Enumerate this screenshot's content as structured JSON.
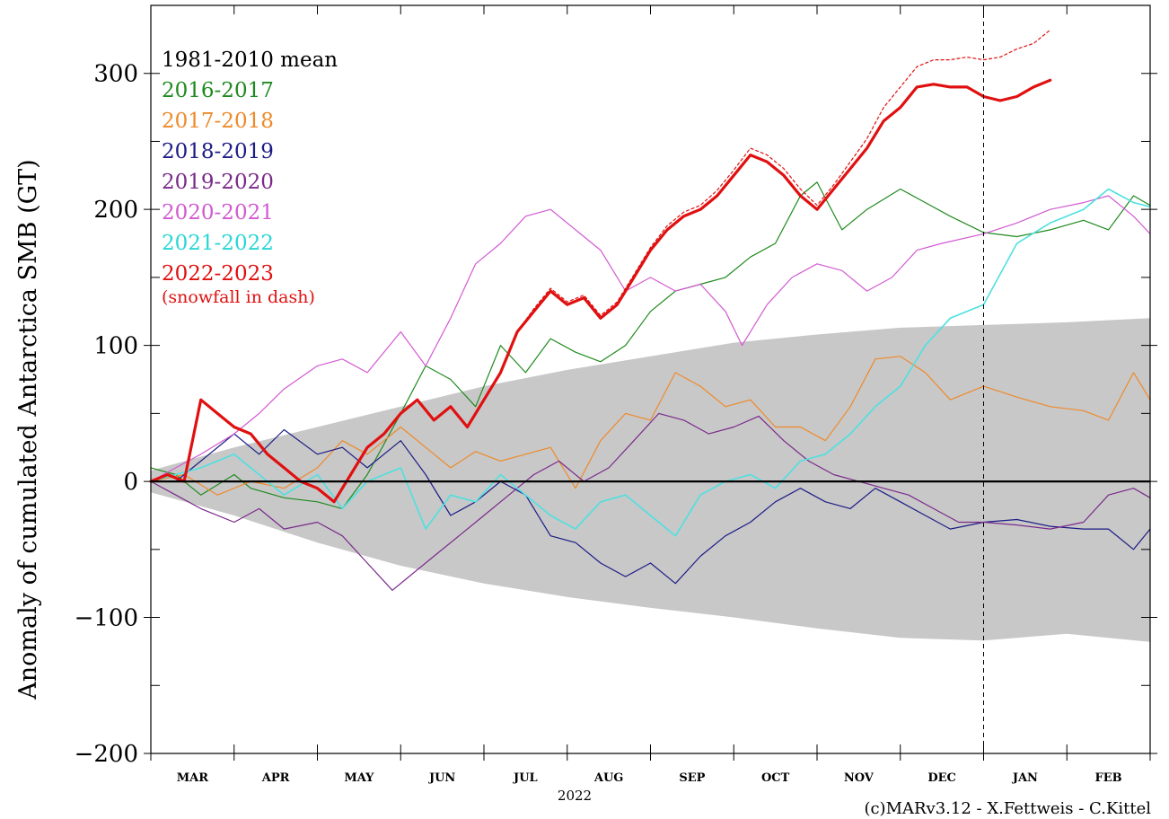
{
  "chart_data": {
    "type": "line",
    "title": "",
    "xlabel": "2022",
    "ylabel": "Anomaly of cumulated Antarctica SMB (GT)",
    "credit": "(c)MARv3.12 - X.Fettweis - C.Kittel",
    "ylim": [
      -200,
      350
    ],
    "yticks": [
      -200,
      -100,
      0,
      100,
      200,
      300
    ],
    "yticks_minor": [
      -150,
      -50,
      50,
      150,
      250
    ],
    "months": [
      "MAR",
      "APR",
      "MAY",
      "JUN",
      "JUL",
      "AUG",
      "SEP",
      "OCT",
      "NOV",
      "DEC",
      "JAN",
      "FEB"
    ],
    "x_unit": "months since 1 Mar 2022",
    "xlim": [
      0,
      12
    ],
    "current_date_marker": 10.0,
    "legend_position": "top-left",
    "grid": false,
    "zero_line": true,
    "band": {
      "name": "1981-2010 mean",
      "x": [
        0,
        1,
        2,
        3,
        4,
        5,
        6,
        7,
        8,
        9,
        10,
        11,
        12
      ],
      "upper": [
        8,
        25,
        40,
        55,
        70,
        82,
        92,
        102,
        108,
        113,
        115,
        117,
        120
      ],
      "lower": [
        -8,
        -25,
        -45,
        -62,
        -75,
        -85,
        -93,
        -100,
        -108,
        -115,
        -117,
        -112,
        -118
      ],
      "color": "#c8c8c8"
    },
    "legend_title": "1981-2010 mean",
    "legend_note": "(snowfall in dash)",
    "series": [
      {
        "name": "2016-2017",
        "color": "#1f8a1f",
        "width": 1.2,
        "x": [
          0,
          0.3,
          0.6,
          1.0,
          1.2,
          1.6,
          2.0,
          2.3,
          2.6,
          3.0,
          3.3,
          3.6,
          3.9,
          4.2,
          4.5,
          4.8,
          5.1,
          5.4,
          5.7,
          6.0,
          6.3,
          6.6,
          6.9,
          7.2,
          7.5,
          7.8,
          8.0,
          8.3,
          8.6,
          9.0,
          9.3,
          9.6,
          10.0,
          10.4,
          10.8,
          11.2,
          11.5,
          11.8,
          12.0
        ],
        "y": [
          10,
          5,
          -10,
          5,
          -5,
          -12,
          -15,
          -20,
          5,
          50,
          85,
          75,
          55,
          100,
          80,
          105,
          95,
          88,
          100,
          125,
          140,
          145,
          150,
          165,
          175,
          210,
          220,
          185,
          200,
          215,
          205,
          195,
          183,
          180,
          185,
          192,
          185,
          210,
          203
        ]
      },
      {
        "name": "2017-2018",
        "color": "#ee8a2a",
        "width": 1.2,
        "x": [
          0,
          0.4,
          0.8,
          1.2,
          1.6,
          2.0,
          2.3,
          2.6,
          3.0,
          3.3,
          3.6,
          3.9,
          4.2,
          4.5,
          4.8,
          5.1,
          5.4,
          5.7,
          6.0,
          6.3,
          6.6,
          6.9,
          7.2,
          7.5,
          7.8,
          8.1,
          8.4,
          8.7,
          9.0,
          9.3,
          9.6,
          10.0,
          10.4,
          10.8,
          11.2,
          11.5,
          11.8,
          12.0
        ],
        "y": [
          0,
          5,
          -10,
          0,
          -5,
          10,
          30,
          20,
          40,
          25,
          10,
          22,
          15,
          20,
          25,
          -5,
          30,
          50,
          45,
          80,
          70,
          55,
          60,
          40,
          40,
          30,
          55,
          90,
          92,
          80,
          60,
          70,
          62,
          55,
          52,
          45,
          80,
          60
        ]
      },
      {
        "name": "2018-2019",
        "color": "#1c1c86",
        "width": 1.2,
        "x": [
          0,
          0.3,
          0.6,
          1.0,
          1.3,
          1.6,
          2.0,
          2.3,
          2.6,
          3.0,
          3.3,
          3.6,
          3.9,
          4.2,
          4.5,
          4.8,
          5.1,
          5.4,
          5.7,
          6.0,
          6.3,
          6.6,
          6.9,
          7.2,
          7.5,
          7.8,
          8.1,
          8.4,
          8.7,
          9.0,
          9.3,
          9.6,
          10.0,
          10.4,
          10.8,
          11.2,
          11.5,
          11.8,
          12.0
        ],
        "y": [
          0,
          0,
          15,
          35,
          20,
          38,
          20,
          25,
          10,
          30,
          5,
          -25,
          -15,
          0,
          -10,
          -40,
          -45,
          -60,
          -70,
          -60,
          -75,
          -55,
          -40,
          -30,
          -15,
          -5,
          -15,
          -20,
          -5,
          -15,
          -25,
          -35,
          -30,
          -28,
          -33,
          -35,
          -35,
          -50,
          -35
        ]
      },
      {
        "name": "2019-2020",
        "color": "#7a2a8a",
        "width": 1.2,
        "x": [
          0,
          0.3,
          0.6,
          1.0,
          1.3,
          1.6,
          2.0,
          2.3,
          2.6,
          2.9,
          3.1,
          3.4,
          3.7,
          4.0,
          4.3,
          4.6,
          4.9,
          5.2,
          5.5,
          5.8,
          6.1,
          6.4,
          6.7,
          7.0,
          7.3,
          7.6,
          7.9,
          8.2,
          8.5,
          8.8,
          9.1,
          9.4,
          9.7,
          10.0,
          10.4,
          10.8,
          11.2,
          11.5,
          11.8,
          12.0
        ],
        "y": [
          0,
          -10,
          -20,
          -30,
          -20,
          -35,
          -30,
          -40,
          -60,
          -80,
          -70,
          -55,
          -40,
          -25,
          -10,
          5,
          15,
          0,
          10,
          30,
          50,
          45,
          35,
          40,
          48,
          30,
          15,
          5,
          0,
          -5,
          -10,
          -20,
          -30,
          -30,
          -32,
          -35,
          -30,
          -10,
          -5,
          -12
        ]
      },
      {
        "name": "2020-2021",
        "color": "#d25ad2",
        "width": 1.2,
        "x": [
          0,
          0.3,
          0.6,
          1.0,
          1.3,
          1.6,
          2.0,
          2.3,
          2.6,
          3.0,
          3.3,
          3.6,
          3.9,
          4.2,
          4.5,
          4.8,
          5.1,
          5.4,
          5.7,
          6.0,
          6.3,
          6.6,
          6.9,
          7.1,
          7.4,
          7.7,
          8.0,
          8.3,
          8.6,
          8.9,
          9.2,
          9.5,
          10.0,
          10.4,
          10.8,
          11.2,
          11.5,
          11.8,
          12.0
        ],
        "y": [
          0,
          10,
          20,
          35,
          50,
          68,
          85,
          90,
          80,
          110,
          85,
          120,
          160,
          175,
          195,
          200,
          185,
          170,
          140,
          150,
          140,
          145,
          125,
          100,
          130,
          150,
          160,
          155,
          140,
          150,
          170,
          175,
          182,
          190,
          200,
          205,
          210,
          195,
          182
        ]
      },
      {
        "name": "2021-2022",
        "color": "#4ee0e0",
        "width": 1.6,
        "x": [
          0,
          0.3,
          0.6,
          1.0,
          1.3,
          1.6,
          2.0,
          2.3,
          2.6,
          3.0,
          3.3,
          3.6,
          3.9,
          4.2,
          4.5,
          4.8,
          5.1,
          5.4,
          5.7,
          6.0,
          6.3,
          6.6,
          6.9,
          7.2,
          7.5,
          7.8,
          8.1,
          8.4,
          8.7,
          9.0,
          9.3,
          9.6,
          10.0,
          10.4,
          10.8,
          11.2,
          11.5,
          11.8,
          12.0
        ],
        "y": [
          0,
          5,
          10,
          20,
          5,
          -10,
          5,
          -20,
          0,
          10,
          -35,
          -10,
          -15,
          5,
          -10,
          -25,
          -35,
          -15,
          -10,
          -25,
          -40,
          -10,
          0,
          5,
          -5,
          15,
          20,
          35,
          55,
          70,
          100,
          120,
          130,
          175,
          190,
          200,
          215,
          205,
          202
        ]
      },
      {
        "name": "2022-2023",
        "color": "#e01010",
        "width": 3.2,
        "x": [
          0,
          0.2,
          0.4,
          0.6,
          0.8,
          1.0,
          1.2,
          1.4,
          1.6,
          1.8,
          2.0,
          2.2,
          2.4,
          2.6,
          2.8,
          3.0,
          3.2,
          3.4,
          3.6,
          3.8,
          4.0,
          4.2,
          4.4,
          4.6,
          4.8,
          5.0,
          5.2,
          5.4,
          5.6,
          5.8,
          6.0,
          6.2,
          6.4,
          6.6,
          6.8,
          7.0,
          7.2,
          7.4,
          7.6,
          7.8,
          8.0,
          8.2,
          8.4,
          8.6,
          8.8,
          9.0,
          9.2,
          9.4,
          9.6,
          9.8,
          10.0,
          10.2,
          10.4,
          10.6,
          10.8
        ],
        "y": [
          0,
          5,
          0,
          60,
          50,
          40,
          35,
          20,
          10,
          0,
          -5,
          -15,
          5,
          25,
          35,
          50,
          60,
          45,
          55,
          40,
          60,
          80,
          110,
          125,
          140,
          130,
          135,
          120,
          130,
          150,
          170,
          185,
          195,
          200,
          210,
          225,
          240,
          235,
          225,
          210,
          200,
          215,
          230,
          245,
          265,
          275,
          290,
          292,
          290,
          290,
          283,
          280,
          283,
          290,
          295
        ]
      },
      {
        "name": "snowfall",
        "color": "#e01010",
        "width": 1.2,
        "dash": true,
        "x": [
          0,
          0.2,
          0.4,
          0.6,
          0.8,
          1.0,
          1.2,
          1.4,
          1.6,
          1.8,
          2.0,
          2.2,
          2.4,
          2.6,
          2.8,
          3.0,
          3.2,
          3.4,
          3.6,
          3.8,
          4.0,
          4.2,
          4.4,
          4.6,
          4.8,
          5.0,
          5.2,
          5.4,
          5.6,
          5.8,
          6.0,
          6.2,
          6.4,
          6.6,
          6.8,
          7.0,
          7.2,
          7.4,
          7.6,
          7.8,
          8.0,
          8.2,
          8.4,
          8.6,
          8.8,
          9.0,
          9.2,
          9.4,
          9.6,
          9.8,
          10.0,
          10.2,
          10.4,
          10.6,
          10.8
        ],
        "y": [
          0,
          5,
          0,
          60,
          50,
          40,
          35,
          20,
          10,
          0,
          -5,
          -15,
          5,
          25,
          35,
          50,
          60,
          45,
          55,
          40,
          60,
          80,
          110,
          127,
          142,
          132,
          137,
          122,
          132,
          152,
          172,
          188,
          198,
          203,
          214,
          229,
          245,
          240,
          230,
          215,
          203,
          218,
          235,
          252,
          275,
          290,
          305,
          310,
          310,
          312,
          310,
          312,
          318,
          322,
          332
        ]
      }
    ]
  }
}
